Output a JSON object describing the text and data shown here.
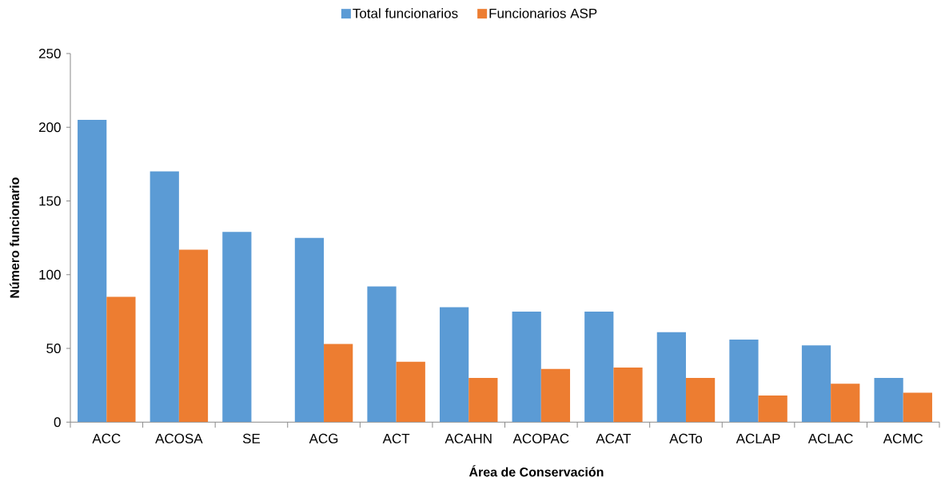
{
  "chart_data": {
    "type": "bar",
    "xlabel": "Área de Conservación",
    "ylabel": "Número funcionario",
    "categories": [
      "ACC",
      "ACOSA",
      "SE",
      "ACG",
      "ACT",
      "ACAHN",
      "ACOPAC",
      "ACAT",
      "ACTo",
      "ACLAP",
      "ACLAC",
      "ACMC"
    ],
    "series": [
      {
        "name": "Total funcionarios",
        "color": "#5b9bd5",
        "values": [
          205,
          170,
          129,
          125,
          92,
          78,
          75,
          75,
          61,
          56,
          52,
          30
        ]
      },
      {
        "name": "Funcionarios ASP",
        "color": "#ed7d31",
        "values": [
          85,
          117,
          null,
          53,
          41,
          30,
          36,
          37,
          30,
          18,
          26,
          20
        ]
      }
    ],
    "ylim": [
      0,
      250
    ],
    "yticks": [
      0,
      50,
      100,
      150,
      200,
      250
    ],
    "legend": "top"
  }
}
